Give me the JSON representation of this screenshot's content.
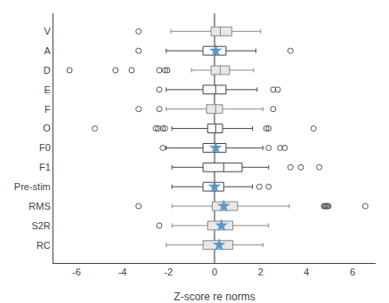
{
  "chart_data": {
    "type": "box",
    "orientation": "horizontal",
    "xlabel": "Z-score re norms",
    "categories": [
      "V",
      "A",
      "D",
      "E",
      "F",
      "O",
      "F0",
      "F1",
      "Pre-stim",
      "RMS",
      "S2R",
      "RC"
    ],
    "series": [
      {
        "type": "box",
        "colors": [
          "#e8e8e8",
          "#ffffff",
          "#e8e8e8",
          "#ffffff",
          "#e8e8e8",
          "#ffffff",
          "#ffffff",
          "#ffffff",
          "#ffffff",
          "#e8e8e8",
          "#e8e8e8",
          "#e8e8e8"
        ],
        "q1": [
          -0.15,
          -0.5,
          -0.15,
          -0.5,
          -0.35,
          -0.3,
          -0.5,
          -0.5,
          -0.5,
          -0.1,
          -0.3,
          -0.5
        ],
        "med": [
          0.25,
          0.05,
          0.25,
          0.05,
          0.05,
          0.05,
          0.05,
          0.4,
          0.0,
          0.4,
          0.3,
          0.2
        ],
        "q3": [
          0.75,
          0.5,
          0.65,
          0.5,
          0.35,
          0.35,
          0.5,
          1.2,
          0.4,
          1.0,
          0.8,
          0.8
        ],
        "whislo": [
          -1.9,
          -2.1,
          -1.0,
          -2.1,
          -2.1,
          -1.85,
          -2.1,
          -1.85,
          -1.85,
          -1.85,
          -1.85,
          -2.1
        ],
        "whishi": [
          2.0,
          1.8,
          1.7,
          1.85,
          2.1,
          1.65,
          2.1,
          2.35,
          1.65,
          3.25,
          2.35,
          2.1
        ]
      },
      {
        "type": "scatter",
        "marker": "star",
        "color": "#5599cc",
        "values": [
          null,
          0.05,
          null,
          null,
          null,
          null,
          0.05,
          null,
          0.0,
          0.4,
          0.3,
          0.2
        ]
      },
      {
        "type": "scatter",
        "marker": "circle-open",
        "color": "#555555",
        "values": [
          [
            -3.3
          ],
          [
            -3.3,
            3.3
          ],
          [
            -6.3,
            -4.3,
            -3.6,
            -2.4,
            -2.15,
            -2.05
          ],
          [
            -2.4,
            2.55,
            2.75
          ],
          [
            -3.3,
            -2.4,
            2.55
          ],
          [
            -5.2,
            -2.55,
            -2.45,
            -2.25,
            -2.15,
            2.25,
            2.35,
            4.3
          ],
          [
            -2.25,
            2.35,
            2.85,
            3.05
          ],
          [
            3.3,
            3.75,
            4.55
          ],
          [
            1.95,
            2.35
          ],
          [
            -3.3,
            4.75,
            4.8,
            4.85,
            4.9,
            4.95,
            6.55
          ],
          [
            -2.4
          ],
          []
        ]
      }
    ],
    "reference_line": 0,
    "reference_line_color": "#333333",
    "xlim": [
      -7,
      7
    ],
    "xticks": [
      -6,
      -4,
      -2,
      0,
      2,
      4,
      6
    ],
    "grid": false
  }
}
